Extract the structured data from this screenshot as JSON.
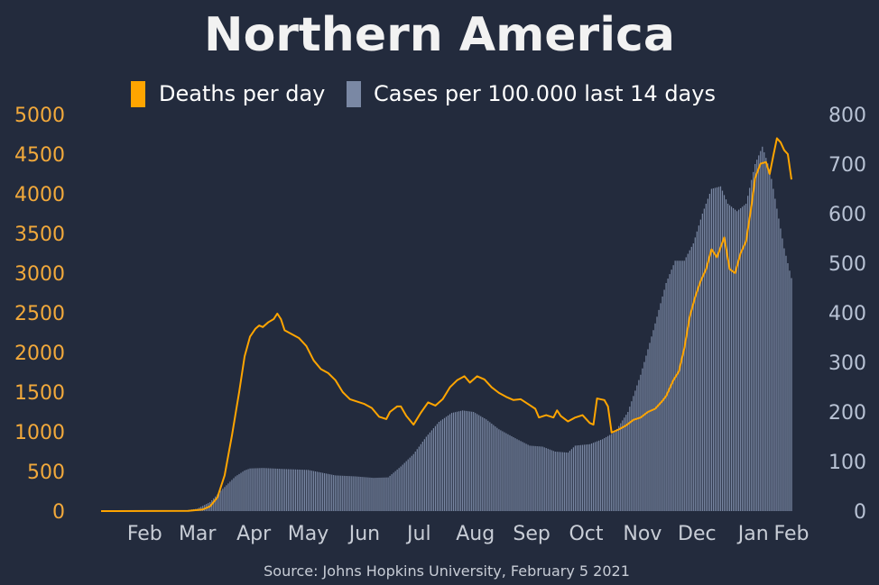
{
  "chart_data": {
    "type": "bar+line",
    "title": "Northern America",
    "source": "Source: Johns Hopkins University, February 5 2021",
    "legend": {
      "placement": "top-center",
      "entries": [
        {
          "name": "Deaths per day",
          "color": "#ffa500"
        },
        {
          "name": "Cases per 100.000 last 14 days",
          "color": "#7a88a4"
        }
      ]
    },
    "x_ticks": [
      "Feb",
      "Mar",
      "Apr",
      "May",
      "Jun",
      "Jul",
      "Aug",
      "Sep",
      "Oct",
      "Nov",
      "Dec",
      "Jan",
      "Feb"
    ],
    "x_range": [
      "2020-01-22",
      "2021-02-05"
    ],
    "y_left": {
      "ticks": [
        0,
        500,
        1000,
        1500,
        2000,
        2500,
        3000,
        3500,
        4000,
        4500,
        5000
      ],
      "range": [
        0,
        5000
      ],
      "color": "#f2a93b"
    },
    "y_right": {
      "ticks": [
        0,
        100,
        200,
        300,
        400,
        500,
        600,
        700,
        800
      ],
      "range": [
        0,
        800
      ],
      "color": "#b8c2d4"
    },
    "grid": false,
    "series": [
      {
        "name": "Deaths per day",
        "kind": "line",
        "axis": "left",
        "color": "#ffa500",
        "points": [
          [
            "2020-01-22",
            0
          ],
          [
            "2020-03-10",
            3
          ],
          [
            "2020-03-18",
            20
          ],
          [
            "2020-03-22",
            60
          ],
          [
            "2020-03-26",
            170
          ],
          [
            "2020-03-30",
            450
          ],
          [
            "2020-04-03",
            950
          ],
          [
            "2020-04-07",
            1500
          ],
          [
            "2020-04-10",
            1950
          ],
          [
            "2020-04-13",
            2200
          ],
          [
            "2020-04-16",
            2300
          ],
          [
            "2020-04-18",
            2340
          ],
          [
            "2020-04-20",
            2320
          ],
          [
            "2020-04-23",
            2380
          ],
          [
            "2020-04-26",
            2420
          ],
          [
            "2020-04-28",
            2490
          ],
          [
            "2020-04-30",
            2420
          ],
          [
            "2020-05-02",
            2280
          ],
          [
            "2020-05-06",
            2230
          ],
          [
            "2020-05-10",
            2180
          ],
          [
            "2020-05-14",
            2080
          ],
          [
            "2020-05-18",
            1900
          ],
          [
            "2020-05-22",
            1790
          ],
          [
            "2020-05-26",
            1740
          ],
          [
            "2020-05-30",
            1650
          ],
          [
            "2020-06-03",
            1500
          ],
          [
            "2020-06-07",
            1410
          ],
          [
            "2020-06-11",
            1380
          ],
          [
            "2020-06-15",
            1350
          ],
          [
            "2020-06-19",
            1300
          ],
          [
            "2020-06-23",
            1190
          ],
          [
            "2020-06-27",
            1160
          ],
          [
            "2020-06-29",
            1250
          ],
          [
            "2020-07-03",
            1320
          ],
          [
            "2020-07-05",
            1320
          ],
          [
            "2020-07-08",
            1200
          ],
          [
            "2020-07-12",
            1090
          ],
          [
            "2020-07-16",
            1240
          ],
          [
            "2020-07-20",
            1370
          ],
          [
            "2020-07-24",
            1330
          ],
          [
            "2020-07-28",
            1410
          ],
          [
            "2020-08-01",
            1560
          ],
          [
            "2020-08-05",
            1650
          ],
          [
            "2020-08-09",
            1700
          ],
          [
            "2020-08-12",
            1620
          ],
          [
            "2020-08-16",
            1700
          ],
          [
            "2020-08-20",
            1660
          ],
          [
            "2020-08-24",
            1560
          ],
          [
            "2020-08-28",
            1490
          ],
          [
            "2020-09-01",
            1440
          ],
          [
            "2020-09-05",
            1400
          ],
          [
            "2020-09-09",
            1410
          ],
          [
            "2020-09-13",
            1350
          ],
          [
            "2020-09-17",
            1290
          ],
          [
            "2020-09-19",
            1180
          ],
          [
            "2020-09-23",
            1210
          ],
          [
            "2020-09-27",
            1180
          ],
          [
            "2020-09-29",
            1270
          ],
          [
            "2020-10-01",
            1200
          ],
          [
            "2020-10-05",
            1130
          ],
          [
            "2020-10-09",
            1180
          ],
          [
            "2020-10-13",
            1210
          ],
          [
            "2020-10-17",
            1110
          ],
          [
            "2020-10-19",
            1090
          ],
          [
            "2020-10-21",
            1420
          ],
          [
            "2020-10-25",
            1400
          ],
          [
            "2020-10-27",
            1320
          ],
          [
            "2020-10-29",
            990
          ],
          [
            "2020-11-02",
            1030
          ],
          [
            "2020-11-06",
            1080
          ],
          [
            "2020-11-10",
            1150
          ],
          [
            "2020-11-14",
            1180
          ],
          [
            "2020-11-18",
            1250
          ],
          [
            "2020-11-22",
            1290
          ],
          [
            "2020-11-26",
            1390
          ],
          [
            "2020-11-28",
            1450
          ],
          [
            "2020-12-02",
            1650
          ],
          [
            "2020-12-05",
            1760
          ],
          [
            "2020-12-08",
            2050
          ],
          [
            "2020-12-11",
            2450
          ],
          [
            "2020-12-14",
            2700
          ],
          [
            "2020-12-17",
            2900
          ],
          [
            "2020-12-20",
            3050
          ],
          [
            "2020-12-23",
            3300
          ],
          [
            "2020-12-26",
            3200
          ],
          [
            "2020-12-30",
            3450
          ],
          [
            "2021-01-02",
            3050
          ],
          [
            "2021-01-05",
            3000
          ],
          [
            "2021-01-08",
            3250
          ],
          [
            "2021-01-11",
            3400
          ],
          [
            "2021-01-14",
            3850
          ],
          [
            "2021-01-16",
            4200
          ],
          [
            "2021-01-19",
            4380
          ],
          [
            "2021-01-22",
            4400
          ],
          [
            "2021-01-24",
            4250
          ],
          [
            "2021-01-26",
            4480
          ],
          [
            "2021-01-28",
            4700
          ],
          [
            "2021-01-30",
            4650
          ],
          [
            "2021-02-01",
            4550
          ],
          [
            "2021-02-03",
            4500
          ],
          [
            "2021-02-05",
            4180
          ]
        ]
      },
      {
        "name": "Cases per 100.000 last 14 days",
        "kind": "bar",
        "axis": "right",
        "color": "#7a88a4",
        "points": [
          [
            "2020-01-22",
            0
          ],
          [
            "2020-03-08",
            1
          ],
          [
            "2020-03-15",
            5
          ],
          [
            "2020-03-22",
            18
          ],
          [
            "2020-03-29",
            45
          ],
          [
            "2020-04-05",
            70
          ],
          [
            "2020-04-10",
            82
          ],
          [
            "2020-04-13",
            86
          ],
          [
            "2020-04-20",
            87
          ],
          [
            "2020-05-01",
            85
          ],
          [
            "2020-05-15",
            83
          ],
          [
            "2020-05-30",
            72
          ],
          [
            "2020-06-10",
            70
          ],
          [
            "2020-06-20",
            67
          ],
          [
            "2020-06-28",
            68
          ],
          [
            "2020-07-05",
            90
          ],
          [
            "2020-07-12",
            115
          ],
          [
            "2020-07-19",
            150
          ],
          [
            "2020-07-26",
            180
          ],
          [
            "2020-08-02",
            198
          ],
          [
            "2020-08-08",
            203
          ],
          [
            "2020-08-14",
            200
          ],
          [
            "2020-08-21",
            185
          ],
          [
            "2020-08-28",
            165
          ],
          [
            "2020-09-07",
            145
          ],
          [
            "2020-09-14",
            132
          ],
          [
            "2020-09-21",
            130
          ],
          [
            "2020-09-28",
            120
          ],
          [
            "2020-10-05",
            118
          ],
          [
            "2020-10-09",
            132
          ],
          [
            "2020-10-17",
            135
          ],
          [
            "2020-10-24",
            145
          ],
          [
            "2020-10-31",
            160
          ],
          [
            "2020-11-07",
            200
          ],
          [
            "2020-11-14",
            275
          ],
          [
            "2020-11-21",
            365
          ],
          [
            "2020-11-28",
            460
          ],
          [
            "2020-12-03",
            505
          ],
          [
            "2020-12-08",
            505
          ],
          [
            "2020-12-13",
            540
          ],
          [
            "2020-12-18",
            600
          ],
          [
            "2020-12-23",
            650
          ],
          [
            "2020-12-28",
            655
          ],
          [
            "2021-01-01",
            620
          ],
          [
            "2021-01-06",
            605
          ],
          [
            "2021-01-11",
            620
          ],
          [
            "2021-01-16",
            700
          ],
          [
            "2021-01-20",
            735
          ],
          [
            "2021-01-24",
            690
          ],
          [
            "2021-01-28",
            610
          ],
          [
            "2021-02-01",
            530
          ],
          [
            "2021-02-05",
            470
          ]
        ]
      }
    ]
  }
}
